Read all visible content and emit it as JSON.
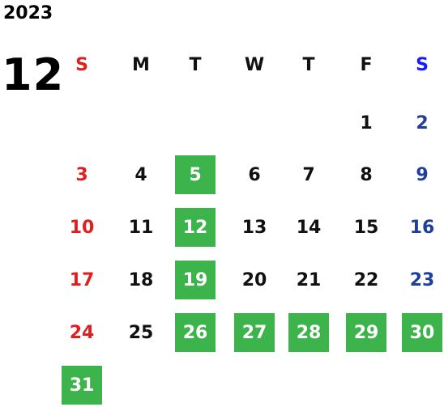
{
  "calendar": {
    "year": "2023",
    "month": "12",
    "weekdays": [
      "S",
      "M",
      "T",
      "W",
      "T",
      "F",
      "S"
    ],
    "weeks": [
      [
        "",
        "",
        "",
        "",
        "",
        "1",
        "2"
      ],
      [
        "3",
        "4",
        "5",
        "6",
        "7",
        "8",
        "9"
      ],
      [
        "10",
        "11",
        "12",
        "13",
        "14",
        "15",
        "16"
      ],
      [
        "17",
        "18",
        "19",
        "20",
        "21",
        "22",
        "23"
      ],
      [
        "24",
        "25",
        "26",
        "27",
        "28",
        "29",
        "30"
      ],
      [
        "31",
        "",
        "",
        "",
        "",
        "",
        ""
      ]
    ],
    "highlighted_days": [
      "5",
      "12",
      "19",
      "26",
      "27",
      "28",
      "29",
      "30",
      "31"
    ]
  },
  "colors": {
    "sunday": "#e02020",
    "saturday_header": "#1a1aff",
    "saturday_dates": "#1f3f9a",
    "weekday": "#111111",
    "highlight": "#3cb44b",
    "highlight_text": "#ffffff"
  }
}
